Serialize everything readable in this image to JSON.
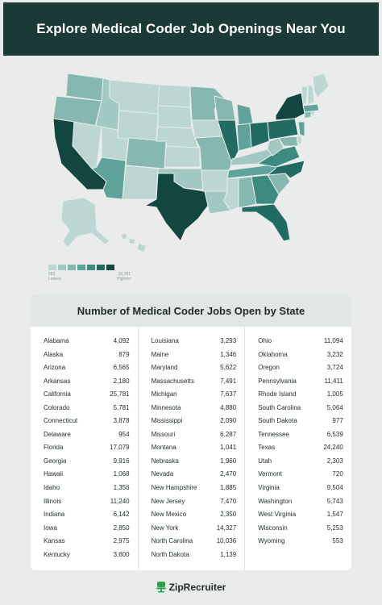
{
  "header": {
    "title": "Explore Medical Coder Job Openings Near You"
  },
  "legend": {
    "low_value": "553",
    "low_label": "Lowest",
    "high_value": "25,781",
    "high_label": "Highest",
    "colors": [
      "#bcd7d3",
      "#a2c8c3",
      "#86b7b1",
      "#5fa39b",
      "#3d8a81",
      "#216b63",
      "#144640"
    ]
  },
  "table": {
    "title": "Number of Medical Coder Jobs Open by State",
    "columns": [
      [
        {
          "state": "Alabama",
          "jobs": "4,092"
        },
        {
          "state": "Alaska",
          "jobs": "879"
        },
        {
          "state": "Arizona",
          "jobs": "6,565"
        },
        {
          "state": "Arkansas",
          "jobs": "2,180"
        },
        {
          "state": "California",
          "jobs": "25,781"
        },
        {
          "state": "Colorado",
          "jobs": "5,781"
        },
        {
          "state": "Connecticut",
          "jobs": "3,878"
        },
        {
          "state": "Delaware",
          "jobs": "954"
        },
        {
          "state": "Florida",
          "jobs": "17,079"
        },
        {
          "state": "Georgia",
          "jobs": "9,916"
        },
        {
          "state": "Hawaii",
          "jobs": "1,068"
        },
        {
          "state": "Idaho",
          "jobs": "1,356"
        },
        {
          "state": "Illinois",
          "jobs": "11,240"
        },
        {
          "state": "Indiana",
          "jobs": "6,142"
        },
        {
          "state": "Iowa",
          "jobs": "2,850"
        },
        {
          "state": "Kansas",
          "jobs": "2,975"
        },
        {
          "state": "Kentucky",
          "jobs": "3,600"
        }
      ],
      [
        {
          "state": "Louisiana",
          "jobs": "3,293"
        },
        {
          "state": "Maine",
          "jobs": "1,346"
        },
        {
          "state": "Maryland",
          "jobs": "5,622"
        },
        {
          "state": "Massachusetts",
          "jobs": "7,491"
        },
        {
          "state": "Michigan",
          "jobs": "7,637"
        },
        {
          "state": "Minnesota",
          "jobs": "4,880"
        },
        {
          "state": "Mississippi",
          "jobs": "2,090"
        },
        {
          "state": "Missouri",
          "jobs": "6,287"
        },
        {
          "state": "Montana",
          "jobs": "1,041"
        },
        {
          "state": "Nebraska",
          "jobs": "1,960"
        },
        {
          "state": "Nevada",
          "jobs": "2,470"
        },
        {
          "state": "New Hampshire",
          "jobs": "1,885"
        },
        {
          "state": "New Jersey",
          "jobs": "7,470"
        },
        {
          "state": "New Mexico",
          "jobs": "2,350"
        },
        {
          "state": "New York",
          "jobs": "14,327"
        },
        {
          "state": "North Carolina",
          "jobs": "10,036"
        },
        {
          "state": "North Dakota",
          "jobs": "1,139"
        }
      ],
      [
        {
          "state": "Ohio",
          "jobs": "11,094"
        },
        {
          "state": "Oklahoma",
          "jobs": "3,232"
        },
        {
          "state": "Oregon",
          "jobs": "3,724"
        },
        {
          "state": "Pennsylvania",
          "jobs": "11,411"
        },
        {
          "state": "Rhode Island",
          "jobs": "1,005"
        },
        {
          "state": "South Carolina",
          "jobs": "5,064"
        },
        {
          "state": "South Dakota",
          "jobs": "977"
        },
        {
          "state": "Tennessee",
          "jobs": "6,539"
        },
        {
          "state": "Texas",
          "jobs": "24,240"
        },
        {
          "state": "Utah",
          "jobs": "2,303"
        },
        {
          "state": "Vermont",
          "jobs": "720"
        },
        {
          "state": "Virginia",
          "jobs": "9,504"
        },
        {
          "state": "Washington",
          "jobs": "5,743"
        },
        {
          "state": "West Virginia",
          "jobs": "1,547"
        },
        {
          "state": "Wisconsin",
          "jobs": "5,253"
        },
        {
          "state": "Wyoming",
          "jobs": "553"
        }
      ]
    ]
  },
  "brand": {
    "name": "ZipRecruiter",
    "logo_icon": "chair-icon",
    "accent": "#2ba04a"
  }
}
